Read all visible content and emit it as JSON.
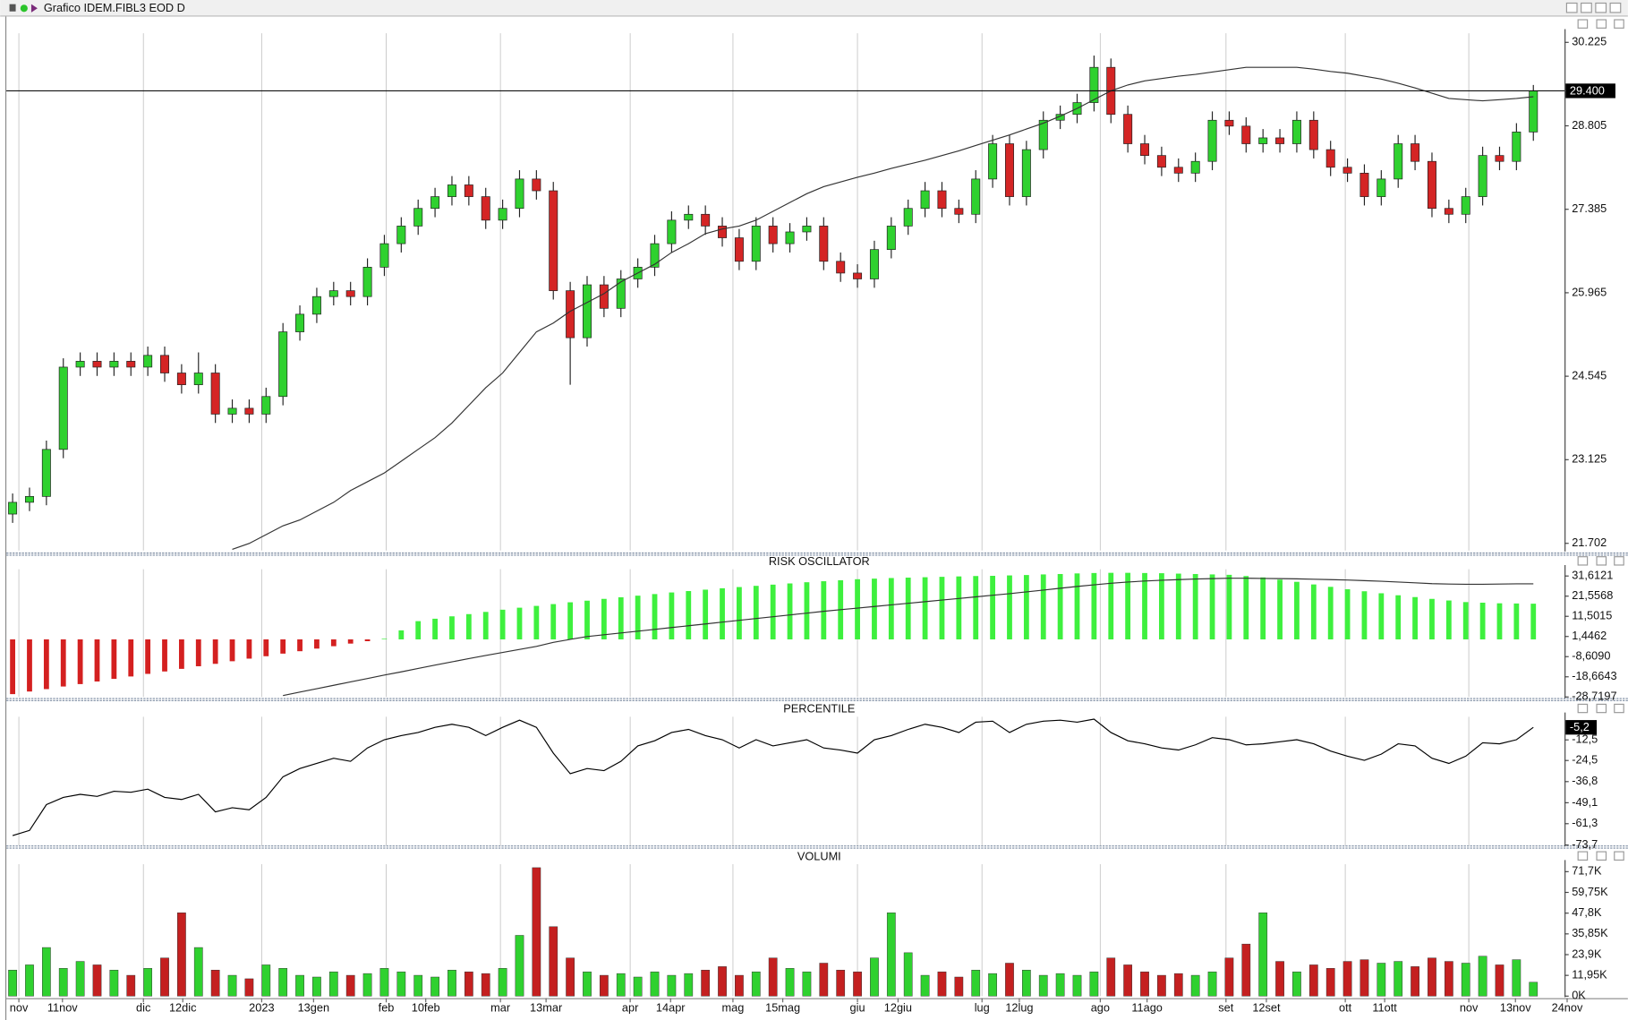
{
  "window_title": "Grafico IDEM.FIBL3 EOD D",
  "x_axis": {
    "xlim": [
      -0.37,
      92.03
    ],
    "grid": true,
    "xticks": [
      {
        "value": 0.37,
        "label": "nov"
      },
      {
        "value": 2.95,
        "label": "11nov"
      },
      {
        "value": 7.74,
        "label": "dic"
      },
      {
        "value": 10.07,
        "label": "12dic"
      },
      {
        "value": 14.74,
        "label": "2023"
      },
      {
        "value": 17.81,
        "label": "13gen"
      },
      {
        "value": 22.11,
        "label": "feb"
      },
      {
        "value": 24.45,
        "label": "10feb"
      },
      {
        "value": 28.87,
        "label": "mar"
      },
      {
        "value": 31.57,
        "label": "13mar"
      },
      {
        "value": 36.55,
        "label": "apr"
      },
      {
        "value": 38.94,
        "label": "14apr"
      },
      {
        "value": 42.63,
        "label": "mag"
      },
      {
        "value": 45.58,
        "label": "15mag"
      },
      {
        "value": 50.0,
        "label": "giu"
      },
      {
        "value": 52.4,
        "label": "12giu"
      },
      {
        "value": 57.37,
        "label": "lug"
      },
      {
        "value": 59.58,
        "label": "12lug"
      },
      {
        "value": 64.37,
        "label": "ago"
      },
      {
        "value": 67.14,
        "label": "11ago"
      },
      {
        "value": 71.81,
        "label": "set"
      },
      {
        "value": 74.2,
        "label": "12set"
      },
      {
        "value": 78.87,
        "label": "ott"
      },
      {
        "value": 81.2,
        "label": "11ott"
      },
      {
        "value": 86.18,
        "label": "nov"
      },
      {
        "value": 88.94,
        "label": "13nov"
      },
      {
        "value": 92.0,
        "label": "24nov"
      }
    ]
  },
  "chart_data": [
    {
      "type": "candlestick",
      "up_color": "#2fd12f",
      "down_color": "#d42525",
      "open": [
        22.2,
        22.4,
        22.5,
        23.3,
        24.7,
        24.8,
        24.7,
        24.8,
        24.7,
        24.9,
        24.6,
        24.4,
        24.6,
        23.9,
        24.0,
        23.9,
        24.2,
        25.3,
        25.6,
        25.9,
        26.0,
        25.9,
        26.4,
        26.8,
        27.1,
        27.4,
        27.6,
        27.8,
        27.6,
        27.2,
        27.4,
        27.9,
        27.7,
        26.0,
        25.2,
        26.1,
        25.7,
        26.2,
        26.4,
        26.8,
        27.2,
        27.3,
        27.1,
        26.9,
        26.5,
        27.1,
        26.8,
        27.0,
        27.1,
        26.5,
        26.3,
        26.2,
        26.7,
        27.1,
        27.4,
        27.7,
        27.4,
        27.3,
        27.9,
        28.5,
        27.6,
        28.4,
        28.9,
        29.0,
        29.2,
        29.8,
        29.0,
        28.5,
        28.3,
        28.1,
        28.0,
        28.2,
        28.9,
        28.8,
        28.5,
        28.6,
        28.5,
        28.9,
        28.4,
        28.1,
        28.0,
        27.6,
        27.9,
        28.5,
        28.2,
        27.4,
        27.3,
        27.6,
        28.3,
        28.2,
        28.7
      ],
      "high": [
        22.55,
        22.65,
        23.45,
        24.85,
        24.95,
        24.95,
        24.95,
        24.95,
        25.05,
        25.05,
        24.75,
        24.95,
        24.75,
        24.15,
        24.15,
        24.35,
        25.45,
        25.75,
        26.05,
        26.15,
        26.15,
        26.55,
        26.95,
        27.25,
        27.55,
        27.75,
        27.95,
        27.95,
        27.75,
        27.55,
        28.05,
        28.05,
        27.85,
        26.15,
        26.25,
        26.25,
        26.35,
        26.55,
        26.95,
        27.35,
        27.45,
        27.45,
        27.25,
        27.05,
        27.25,
        27.25,
        27.15,
        27.25,
        27.25,
        26.65,
        26.45,
        26.85,
        27.25,
        27.55,
        27.85,
        27.85,
        27.55,
        28.05,
        28.65,
        28.65,
        28.55,
        29.05,
        29.15,
        29.35,
        30.0,
        29.95,
        29.15,
        28.65,
        28.45,
        28.25,
        28.35,
        29.05,
        29.05,
        28.95,
        28.75,
        28.75,
        29.05,
        29.05,
        28.55,
        28.25,
        28.15,
        28.05,
        28.65,
        28.65,
        28.35,
        27.55,
        27.75,
        28.45,
        28.45,
        28.85,
        29.5
      ],
      "low": [
        22.05,
        22.25,
        22.35,
        23.15,
        24.55,
        24.55,
        24.55,
        24.55,
        24.55,
        24.45,
        24.25,
        24.25,
        23.75,
        23.75,
        23.75,
        23.75,
        24.05,
        25.15,
        25.45,
        25.75,
        25.75,
        25.75,
        26.25,
        26.65,
        26.95,
        27.25,
        27.45,
        27.45,
        27.05,
        27.05,
        27.25,
        27.55,
        25.85,
        24.4,
        25.05,
        25.55,
        25.55,
        26.05,
        26.25,
        26.65,
        27.05,
        26.95,
        26.75,
        26.35,
        26.35,
        26.65,
        26.65,
        26.85,
        26.35,
        26.15,
        26.05,
        26.05,
        26.55,
        26.95,
        27.25,
        27.25,
        27.15,
        27.15,
        27.75,
        27.45,
        27.45,
        28.25,
        28.75,
        28.85,
        29.05,
        28.85,
        28.35,
        28.15,
        27.95,
        27.85,
        27.85,
        28.05,
        28.65,
        28.35,
        28.35,
        28.35,
        28.35,
        28.25,
        27.95,
        27.85,
        27.45,
        27.45,
        27.75,
        28.05,
        27.25,
        27.15,
        27.15,
        27.45,
        28.05,
        28.05,
        28.55
      ],
      "close": [
        22.4,
        22.5,
        23.3,
        24.7,
        24.8,
        24.7,
        24.8,
        24.7,
        24.9,
        24.6,
        24.4,
        24.6,
        23.9,
        24.0,
        23.9,
        24.2,
        25.3,
        25.6,
        25.9,
        26.0,
        25.9,
        26.4,
        26.8,
        27.1,
        27.4,
        27.6,
        27.8,
        27.6,
        27.2,
        27.4,
        27.9,
        27.7,
        26.0,
        25.2,
        26.1,
        25.7,
        26.2,
        26.4,
        26.8,
        27.2,
        27.3,
        27.1,
        26.9,
        26.5,
        27.1,
        26.8,
        27.0,
        27.1,
        26.5,
        26.3,
        26.2,
        26.7,
        27.1,
        27.4,
        27.7,
        27.4,
        27.3,
        27.9,
        28.5,
        27.6,
        28.4,
        28.9,
        29.0,
        29.2,
        29.8,
        29.0,
        28.5,
        28.3,
        28.1,
        28.0,
        28.2,
        28.9,
        28.8,
        28.5,
        28.6,
        28.5,
        28.9,
        28.4,
        28.1,
        28.0,
        27.6,
        27.9,
        28.5,
        28.2,
        27.4,
        27.3,
        27.6,
        28.3,
        28.2,
        28.7,
        29.4
      ],
      "overlay": {
        "type": "line",
        "color": "#333333",
        "values": [
          null,
          null,
          null,
          null,
          null,
          null,
          null,
          null,
          null,
          null,
          null,
          null,
          null,
          21.6,
          21.7,
          21.85,
          22.0,
          22.1,
          22.25,
          22.4,
          22.6,
          22.75,
          22.9,
          23.1,
          23.3,
          23.5,
          23.75,
          24.05,
          24.35,
          24.6,
          24.95,
          25.3,
          25.45,
          25.65,
          25.8,
          25.95,
          26.15,
          26.3,
          26.45,
          26.65,
          26.8,
          26.97,
          27.05,
          27.1,
          27.2,
          27.35,
          27.5,
          27.65,
          27.77,
          27.85,
          27.93,
          28.0,
          28.08,
          28.15,
          28.22,
          28.3,
          28.38,
          28.47,
          28.56,
          28.65,
          28.75,
          28.85,
          28.97,
          29.1,
          29.25,
          29.4,
          29.5,
          29.57,
          29.61,
          29.65,
          29.68,
          29.72,
          29.76,
          29.8,
          29.8,
          29.8,
          29.8,
          29.77,
          29.73,
          29.7,
          29.65,
          29.6,
          29.53,
          29.45,
          29.36,
          29.27,
          29.25,
          29.23,
          29.25,
          29.27,
          29.3
        ]
      },
      "last_value": {
        "value": 29.4,
        "label": "29.400"
      },
      "ylim": [
        21.58,
        30.38
      ],
      "yticks": [
        21.702,
        23.125,
        24.545,
        25.965,
        27.385,
        28.805,
        30.225
      ]
    },
    {
      "type": "bar",
      "title": "RISK OSCILLATOR",
      "up_color": "#3ef03e",
      "down_color": "#d42020",
      "values": [
        -27.3,
        -26.0,
        -24.8,
        -23.5,
        -22.3,
        -21.0,
        -19.7,
        -18.5,
        -17.2,
        -16.0,
        -14.7,
        -13.4,
        -12.2,
        -10.9,
        -9.6,
        -8.4,
        -7.1,
        -5.9,
        -4.6,
        -3.4,
        -2.1,
        -0.9,
        0.3,
        4.5,
        9.1,
        10.3,
        11.5,
        12.6,
        13.7,
        14.8,
        15.8,
        16.7,
        17.6,
        18.5,
        19.3,
        20.2,
        21.0,
        21.8,
        22.6,
        23.4,
        24.1,
        24.8,
        25.5,
        26.1,
        26.7,
        27.3,
        27.9,
        28.5,
        29.0,
        29.5,
        30.0,
        30.3,
        30.6,
        30.8,
        31.0,
        31.2,
        31.4,
        31.6,
        31.7,
        31.9,
        32.1,
        32.4,
        32.6,
        32.9,
        33.1,
        33.2,
        33.2,
        33.1,
        33.0,
        32.8,
        32.6,
        32.4,
        32.2,
        31.6,
        30.9,
        29.8,
        28.7,
        27.4,
        26.2,
        25.0,
        24.0,
        23.0,
        22.0,
        21.1,
        20.2,
        19.4,
        18.6,
        18.3,
        18.0,
        17.9,
        17.8
      ],
      "overlay": {
        "type": "line",
        "color": "#333333",
        "values": [
          null,
          null,
          null,
          null,
          null,
          null,
          null,
          null,
          null,
          null,
          null,
          null,
          null,
          null,
          null,
          null,
          -28.0,
          -26.3,
          -24.6,
          -22.9,
          -21.2,
          -19.5,
          -17.8,
          -16.2,
          -14.5,
          -12.8,
          -11.2,
          -9.6,
          -8.0,
          -6.5,
          -5.0,
          -3.5,
          -1.5,
          0,
          1.4,
          2.3,
          3.2,
          4.1,
          5.0,
          5.9,
          6.8,
          7.7,
          8.6,
          9.5,
          10.4,
          11.3,
          12.2,
          13.1,
          14.0,
          14.8,
          15.6,
          16.4,
          17.2,
          18.0,
          18.8,
          19.6,
          20.4,
          21.2,
          22.0,
          22.8,
          23.7,
          24.6,
          25.5,
          26.4,
          27.2,
          28.0,
          28.6,
          29.1,
          29.5,
          29.8,
          30.1,
          30.3,
          30.5,
          30.5,
          30.4,
          30.3,
          30.2,
          30.0,
          29.8,
          29.6,
          29.3,
          29.0,
          28.6,
          28.2,
          27.8,
          27.6,
          27.5,
          27.5,
          27.6,
          27.7,
          27.7
        ]
      },
      "ylim": [
        -28.7197,
        35
      ],
      "yticks": [
        {
          "value": 31.6121,
          "label": "31,6121"
        },
        {
          "value": 21.5568,
          "label": "21,5568"
        },
        {
          "value": 11.5015,
          "label": "11,5015"
        },
        {
          "value": 1.4462,
          "label": "1,4462"
        },
        {
          "value": -8.609,
          "label": "-8,6090"
        },
        {
          "value": -18.6643,
          "label": "-18,6643"
        },
        {
          "value": -28.7197,
          "label": "-28,7197"
        }
      ]
    },
    {
      "type": "line",
      "title": "PERCENTILE",
      "color": "#000000",
      "values": [
        -68.2,
        -65.2,
        -50.2,
        -46.0,
        -44.2,
        -45.4,
        -42.4,
        -43.0,
        -41.2,
        -46.0,
        -47.2,
        -44.2,
        -54.4,
        -52.0,
        -53.2,
        -46.0,
        -34.0,
        -29.2,
        -26.2,
        -23.2,
        -25.0,
        -17.2,
        -12.4,
        -10.0,
        -8.2,
        -5.2,
        -3.4,
        -5.2,
        -10.0,
        -5.2,
        -1.0,
        -5.2,
        -20.2,
        -32.2,
        -29.2,
        -30.4,
        -25.0,
        -16.0,
        -13.0,
        -8.2,
        -6.4,
        -10.0,
        -12.4,
        -17.2,
        -12.4,
        -16.0,
        -14.2,
        -12.4,
        -17.2,
        -18.4,
        -20.2,
        -12.4,
        -10.0,
        -6.4,
        -3.4,
        -5.2,
        -8.2,
        -2.2,
        -1.6,
        -8.2,
        -3.4,
        -1.6,
        -1.0,
        -2.2,
        -0.4,
        -8.2,
        -13.0,
        -14.8,
        -17.2,
        -18.4,
        -15.4,
        -11.2,
        -12.4,
        -15.4,
        -14.8,
        -13.6,
        -12.4,
        -14.8,
        -19.0,
        -22.0,
        -24.4,
        -20.8,
        -14.8,
        -16.0,
        -23.2,
        -26.2,
        -22.0,
        -14.2,
        -14.8,
        -12.4,
        -5.2
      ],
      "last_value": {
        "value": -5.2,
        "label": "-5,2"
      },
      "ylim": [
        -74,
        1
      ],
      "yticks": [
        {
          "value": -12.5,
          "label": "-12,5"
        },
        {
          "value": -24.5,
          "label": "-24,5"
        },
        {
          "value": -36.8,
          "label": "-36,8"
        },
        {
          "value": -49.1,
          "label": "-49,1"
        },
        {
          "value": -61.3,
          "label": "-61,3"
        },
        {
          "value": -73.7,
          "label": "-73,7"
        }
      ]
    },
    {
      "type": "volume",
      "title": "VOLUMI",
      "up_color": "#2fd12f",
      "down_color": "#c42020",
      "values": [
        15000,
        18000,
        28000,
        16000,
        20000,
        18000,
        15000,
        12000,
        16000,
        22000,
        48000,
        28000,
        15000,
        12000,
        10000,
        18000,
        16000,
        12000,
        11000,
        14000,
        12000,
        13000,
        16000,
        14000,
        12000,
        11000,
        15000,
        14000,
        13000,
        16000,
        35000,
        74000,
        40000,
        22000,
        14000,
        12000,
        13000,
        11000,
        14000,
        12000,
        13000,
        15000,
        17000,
        12000,
        14000,
        22000,
        16000,
        14000,
        19000,
        15000,
        14000,
        22000,
        48000,
        25000,
        12000,
        14000,
        11000,
        15000,
        13000,
        19000,
        15000,
        12000,
        13000,
        12000,
        14000,
        22000,
        18000,
        14000,
        12000,
        13000,
        12000,
        14000,
        22000,
        30000,
        48000,
        20000,
        14000,
        18000,
        16000,
        20000,
        21000,
        19000,
        20000,
        17000,
        22000,
        20000,
        19000,
        23000,
        18000,
        21000,
        8000
      ],
      "ylim": [
        0,
        76000
      ],
      "yticks": [
        {
          "value": 71700,
          "label": "71,7K"
        },
        {
          "value": 59750,
          "label": "59,75K"
        },
        {
          "value": 47800,
          "label": "47,8K"
        },
        {
          "value": 35850,
          "label": "35,85K"
        },
        {
          "value": 23900,
          "label": "23,9K"
        },
        {
          "value": 11950,
          "label": "11,95K"
        },
        {
          "value": 0,
          "label": "0K"
        }
      ]
    }
  ]
}
